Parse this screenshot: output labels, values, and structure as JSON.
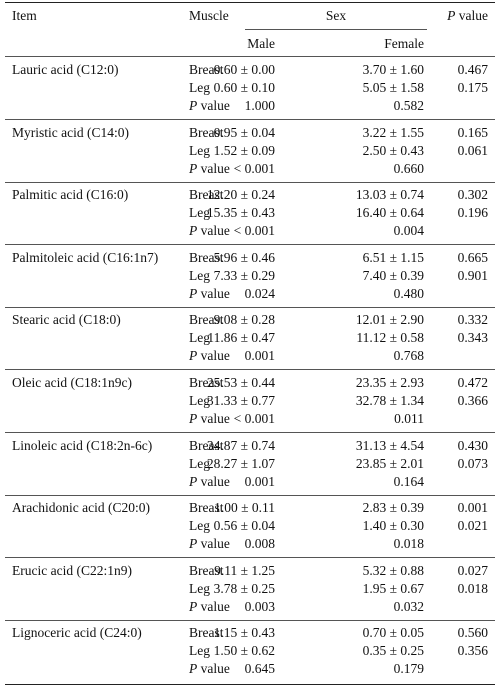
{
  "header": {
    "item": "Item",
    "muscle": "Muscle",
    "sex": "Sex",
    "male": "Male",
    "female": "Female",
    "p_value_italic": "P",
    "p_value_rest": " value"
  },
  "rows": [
    {
      "item": "Lauric acid (C12:0)",
      "breast_male": "0.60 ± 0.00",
      "breast_female": "3.70 ± 1.60",
      "breast_p": "0.467",
      "leg_male": "0.60 ± 0.10",
      "leg_female": "5.05 ± 1.58",
      "leg_p": "0.175",
      "sex_p_male": "1.000",
      "sex_p_female": "0.582"
    },
    {
      "item": "Myristic acid (C14:0)",
      "breast_male": "0.95 ± 0.04",
      "breast_female": "3.22 ± 1.55",
      "breast_p": "0.165",
      "leg_male": "1.52 ± 0.09",
      "leg_female": "2.50 ± 0.43",
      "leg_p": "0.061",
      "sex_p_male": "< 0.001",
      "sex_p_female": "0.660"
    },
    {
      "item": "Palmitic acid (C16:0)",
      "breast_male": "12.20 ± 0.24",
      "breast_female": "13.03 ± 0.74",
      "breast_p": "0.302",
      "leg_male": "15.35 ± 0.43",
      "leg_female": "16.40 ± 0.64",
      "leg_p": "0.196",
      "sex_p_male": "< 0.001",
      "sex_p_female": "0.004"
    },
    {
      "item": "Palmitoleic acid (C16:1n7)",
      "breast_male": "5.96 ± 0.46",
      "breast_female": "6.51 ± 1.15",
      "breast_p": "0.665",
      "leg_male": "7.33 ± 0.29",
      "leg_female": "7.40 ± 0.39",
      "leg_p": "0.901",
      "sex_p_male": "0.024",
      "sex_p_female": "0.480"
    },
    {
      "item": "Stearic acid (C18:0)",
      "breast_male": "9.08 ± 0.28",
      "breast_female": "12.01 ± 2.90",
      "breast_p": "0.332",
      "leg_male": "11.86 ± 0.47",
      "leg_female": "11.12 ± 0.58",
      "leg_p": "0.343",
      "sex_p_male": "0.001",
      "sex_p_female": "0.768"
    },
    {
      "item": "Oleic acid (C18:1n9c)",
      "breast_male": "25.53 ± 0.44",
      "breast_female": "23.35 ± 2.93",
      "breast_p": "0.472",
      "leg_male": "31.33 ± 0.77",
      "leg_female": "32.78 ± 1.34",
      "leg_p": "0.366",
      "sex_p_male": "< 0.001",
      "sex_p_female": "0.011"
    },
    {
      "item": "Linoleic acid (C18:2n-6c)",
      "breast_male": "34.87 ± 0.74",
      "breast_female": "31.13 ± 4.54",
      "breast_p": "0.430",
      "leg_male": "28.27 ± 1.07",
      "leg_female": "23.85 ± 2.01",
      "leg_p": "0.073",
      "sex_p_male": "0.001",
      "sex_p_female": "0.164"
    },
    {
      "item": "Arachidonic acid (C20:0)",
      "breast_male": "1.00 ± 0.11",
      "breast_female": "2.83 ± 0.39",
      "breast_p": "0.001",
      "leg_male": "0.56 ± 0.04",
      "leg_female": "1.40 ± 0.30",
      "leg_p": "0.021",
      "sex_p_male": "0.008",
      "sex_p_female": "0.018"
    },
    {
      "item": "Erucic acid (C22:1n9)",
      "breast_male": "9.11 ± 1.25",
      "breast_female": "5.32 ± 0.88",
      "breast_p": "0.027",
      "leg_male": "3.78 ± 0.25",
      "leg_female": "1.95 ± 0.67",
      "leg_p": "0.018",
      "sex_p_male": "0.003",
      "sex_p_female": "0.032"
    },
    {
      "item": "Lignoceric acid (C24:0)",
      "breast_male": "1.15 ± 0.43",
      "breast_female": "0.70 ± 0.05",
      "breast_p": "0.560",
      "leg_male": "1.50 ± 0.62",
      "leg_female": "0.35 ± 0.25",
      "leg_p": "0.356",
      "sex_p_male": "0.645",
      "sex_p_female": "0.179"
    }
  ],
  "labels": {
    "breast": "Breast",
    "leg": "Leg",
    "p_italic": "P",
    "p_rest": " value"
  }
}
